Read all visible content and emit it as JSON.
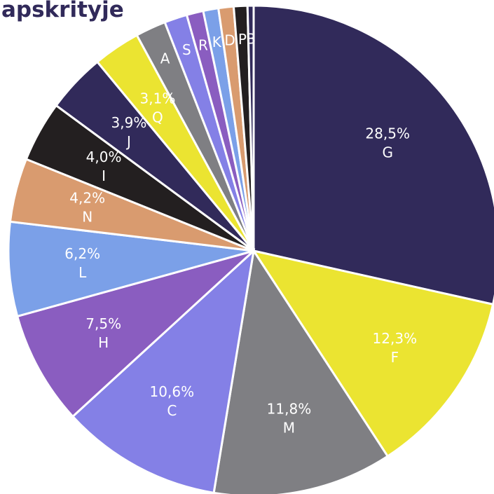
{
  "chart_data": {
    "type": "pie",
    "title": "apskrityje",
    "categories": [
      "G",
      "F",
      "M",
      "C",
      "H",
      "L",
      "N",
      "I",
      "J",
      "Q",
      "A",
      "S",
      "R",
      "K",
      "D",
      "P",
      "B"
    ],
    "values": [
      28.5,
      12.3,
      11.8,
      10.6,
      7.5,
      6.2,
      4.2,
      4.0,
      3.9,
      3.1,
      2.0,
      1.5,
      1.1,
      1.0,
      1.0,
      0.9,
      0.4
    ],
    "value_labels": [
      "28,5%",
      "12,3%",
      "11,8%",
      "10,6%",
      "7,5%",
      "6,2%",
      "4,2%",
      "4,0%",
      "3,9%",
      "3,1%",
      null,
      null,
      null,
      null,
      null,
      null,
      null
    ],
    "colors": [
      "#312a5a",
      "#ebe431",
      "#7f7f83",
      "#8480e6",
      "#8a5dc0",
      "#7ba0e8",
      "#d99b6f",
      "#231f20",
      "#312a5a",
      "#ebe431",
      "#7f7f83",
      "#8480e6",
      "#8a5dc0",
      "#7ba0e8",
      "#d99b6f",
      "#231f20",
      "#312a5a"
    ]
  }
}
